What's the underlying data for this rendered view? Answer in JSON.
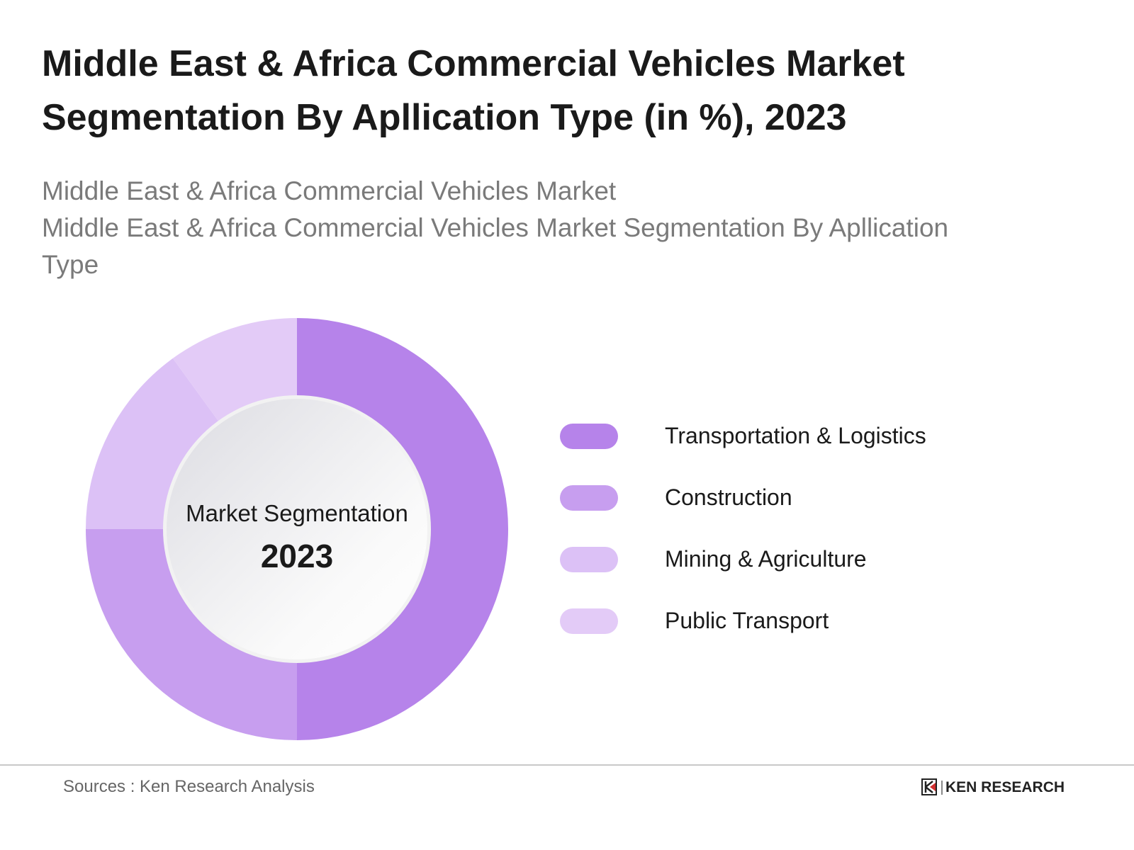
{
  "title": [
    "Middle East & Africa Commercial Vehicles Market",
    "Segmentation By Apllication Type (in %), 2023"
  ],
  "subtitle": [
    "Middle East & Africa Commercial Vehicles Market",
    "Middle East & Africa Commercial Vehicles Market Segmentation By Apllication",
    "Type"
  ],
  "chart_data": {
    "type": "pie",
    "donut": true,
    "center_label": "Market Segmentation",
    "center_value": "2023",
    "categories": [
      "Transportation & Logistics",
      "Construction",
      "Mining & Agriculture",
      "Public Transport"
    ],
    "values": [
      50,
      25,
      15,
      10
    ],
    "colors": [
      "#b683ea",
      "#c79eef",
      "#dcc1f6",
      "#e3cbf7"
    ],
    "legend_position": "right"
  },
  "footer": {
    "source": "Sources : Ken Research Analysis",
    "logo_text": "KEN RESEARCH",
    "logo_accent": "#d32f2f"
  }
}
